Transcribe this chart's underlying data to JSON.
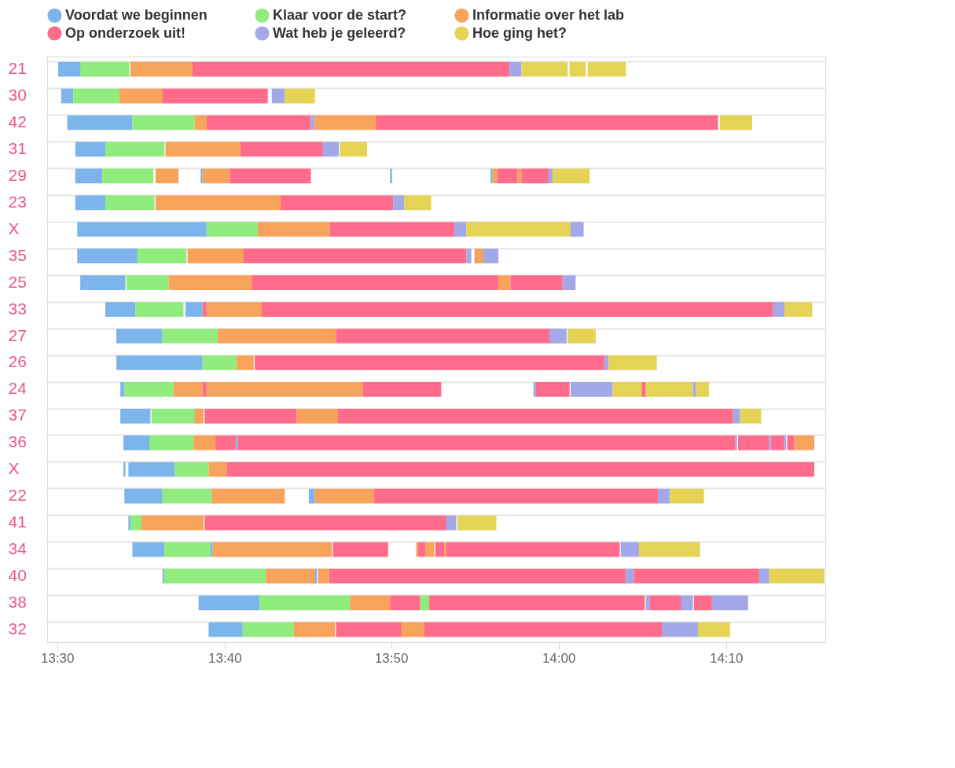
{
  "chart_data": {
    "type": "bar",
    "orientation": "horizontal",
    "legend": "top",
    "grid": "y",
    "categories": [
      "21",
      "30",
      "42",
      "31",
      "29",
      "23",
      "X",
      "35",
      "25",
      "33",
      "27",
      "26",
      "24",
      "37",
      "36",
      "X",
      "22",
      "41",
      "34",
      "40",
      "38",
      "32"
    ],
    "xlim": [
      13.49,
      14.266
    ],
    "xticks": [
      {
        "value": 13.5,
        "label": "13:30"
      },
      {
        "value": 13.667,
        "label": "13:40"
      },
      {
        "value": 13.833,
        "label": "13:50"
      },
      {
        "value": 14.0,
        "label": "14:00"
      },
      {
        "value": 14.167,
        "label": "14:10"
      }
    ],
    "series": [
      {
        "name": "Voordat we beginnen",
        "color": "#7cb5ec",
        "base": [
          13.501,
          13.504,
          13.51,
          13.518,
          13.518,
          13.518,
          13.52,
          13.52,
          13.523,
          13.548,
          13.559,
          13.559,
          13.563,
          13.563,
          13.566,
          13.566,
          13.567,
          13.571,
          13.575,
          13.605,
          13.641,
          13.651
        ],
        "values": [
          0.023,
          0.012,
          0.065,
          0.03,
          0.027,
          0.03,
          0.129,
          0.061,
          0.045,
          0.03,
          0.046,
          0.086,
          0.004,
          0.03,
          0.027,
          0.002,
          0.038,
          0.002,
          0.032,
          0.002,
          0.061,
          0.034
        ]
      },
      {
        "color": "#7cb5ec",
        "base": [
          null,
          null,
          null,
          null,
          13.643,
          null,
          null,
          null,
          null,
          13.628,
          null,
          null,
          13.975,
          null,
          13.678,
          13.571,
          13.751,
          null,
          13.653,
          13.757,
          null,
          null
        ],
        "values": [
          null,
          null,
          null,
          null,
          0.002,
          null,
          null,
          null,
          null,
          0.017,
          null,
          null,
          0.002,
          null,
          0.002,
          0.046,
          0.006,
          null,
          0.002,
          0.002,
          null,
          null
        ]
      },
      {
        "color": "#7cb5ec",
        "base": [
          null,
          null,
          null,
          null,
          13.832,
          null,
          null,
          null,
          null,
          null,
          null,
          null,
          null,
          null,
          null,
          null,
          null,
          null,
          null,
          null,
          null,
          null
        ],
        "values": [
          null,
          null,
          null,
          null,
          0.002,
          null,
          null,
          null,
          null,
          null,
          null,
          null,
          null,
          null,
          null,
          null,
          null,
          null,
          null,
          null,
          null,
          null
        ]
      },
      {
        "color": "#7cb5ec",
        "base": [
          null,
          null,
          null,
          null,
          13.932,
          null,
          null,
          null,
          null,
          null,
          null,
          null,
          null,
          null,
          null,
          null,
          null,
          null,
          null,
          null,
          null,
          null
        ],
        "values": [
          null,
          null,
          null,
          null,
          0.002,
          null,
          null,
          null,
          null,
          null,
          null,
          null,
          null,
          null,
          null,
          null,
          null,
          null,
          null,
          null,
          null,
          null
        ]
      },
      {
        "name": "Klaar voor de start?",
        "color": "#90ed7d",
        "base": [
          13.523,
          13.516,
          13.575,
          13.548,
          13.545,
          13.548,
          13.649,
          13.58,
          13.569,
          13.578,
          13.605,
          13.645,
          13.567,
          13.594,
          13.592,
          13.617,
          13.605,
          13.573,
          13.607,
          13.607,
          13.702,
          13.685
        ],
        "values": [
          0.049,
          0.046,
          0.062,
          0.059,
          0.051,
          0.049,
          0.051,
          0.049,
          0.042,
          0.048,
          0.055,
          0.034,
          0.049,
          0.044,
          0.044,
          0.034,
          0.049,
          0.012,
          0.046,
          0.101,
          0.09,
          0.051
        ]
      },
      {
        "color": "#90ed7d",
        "base": [
          null,
          null,
          null,
          null,
          null,
          null,
          null,
          null,
          null,
          null,
          null,
          null,
          null,
          null,
          null,
          null,
          null,
          null,
          null,
          null,
          13.862,
          null
        ],
        "values": [
          null,
          null,
          null,
          null,
          null,
          null,
          null,
          null,
          null,
          null,
          null,
          null,
          null,
          null,
          null,
          null,
          null,
          null,
          null,
          null,
          0.009,
          null
        ]
      },
      {
        "name": "Informatie over het lab",
        "color": "#f7a35c",
        "base": [
          13.573,
          13.562,
          13.637,
          13.608,
          13.598,
          13.598,
          13.7,
          13.63,
          13.611,
          13.649,
          13.66,
          13.679,
          13.616,
          13.637,
          13.636,
          13.651,
          13.654,
          13.584,
          13.655,
          13.708,
          13.792,
          13.736
        ],
        "values": [
          0.062,
          0.044,
          0.012,
          0.076,
          0.023,
          0.126,
          0.072,
          0.057,
          0.083,
          0.055,
          0.118,
          0.017,
          0.029,
          0.009,
          0.023,
          0.018,
          0.073,
          0.062,
          0.119,
          0.05,
          0.04,
          0.041
        ]
      },
      {
        "color": "#f7a35c",
        "base": [
          null,
          null,
          13.757,
          null,
          13.645,
          null,
          null,
          13.916,
          13.94,
          null,
          null,
          null,
          13.649,
          13.739,
          14.235,
          null,
          13.757,
          null,
          13.858,
          13.76,
          null,
          13.843
        ],
        "values": [
          null,
          null,
          0.062,
          null,
          0.027,
          null,
          null,
          0.009,
          0.012,
          null,
          null,
          null,
          0.156,
          0.041,
          0.02,
          null,
          0.059,
          null,
          0.002,
          0.011,
          null,
          0.023
        ]
      },
      {
        "color": "#f7a35c",
        "base": [
          null,
          null,
          null,
          null,
          13.934,
          null,
          null,
          null,
          null,
          null,
          null,
          null,
          null,
          null,
          null,
          null,
          null,
          null,
          13.867,
          null,
          null,
          null
        ],
        "values": [
          null,
          null,
          null,
          null,
          0.005,
          null,
          null,
          null,
          null,
          null,
          null,
          null,
          null,
          null,
          null,
          null,
          null,
          null,
          0.009,
          null,
          null,
          null
        ]
      },
      {
        "color": "#f7a35c",
        "base": [
          null,
          null,
          null,
          null,
          13.959,
          null,
          null,
          null,
          null,
          null,
          null,
          null,
          null,
          null,
          null,
          null,
          null,
          null,
          13.886,
          null,
          null,
          null
        ],
        "values": [
          null,
          null,
          null,
          null,
          0.004,
          null,
          null,
          null,
          null,
          null,
          null,
          null,
          null,
          null,
          null,
          null,
          null,
          null,
          0.002,
          null,
          null,
          null
        ]
      },
      {
        "name": "Op onderzoek uit!",
        "color": "#ff6b8a",
        "base": [
          13.635,
          13.605,
          13.649,
          13.683,
          13.672,
          13.723,
          13.772,
          13.686,
          13.694,
          13.645,
          13.778,
          13.697,
          13.645,
          13.647,
          13.658,
          13.669,
          13.816,
          13.647,
          13.775,
          13.771,
          13.832,
          13.778
        ],
        "values": [
          0.316,
          0.105,
          0.104,
          0.082,
          0.081,
          0.112,
          0.124,
          0.222,
          0.246,
          0.004,
          0.214,
          0.349,
          0.004,
          0.092,
          0.02,
          0.586,
          0.283,
          0.242,
          0.055,
          0.296,
          0.03,
          0.066
        ]
      },
      {
        "color": "#ff6b8a",
        "base": [
          null,
          null,
          13.818,
          null,
          13.939,
          null,
          null,
          null,
          13.952,
          13.704,
          null,
          null,
          13.805,
          13.78,
          13.68,
          null,
          null,
          null,
          13.86,
          14.075,
          13.871,
          13.866
        ],
        "values": [
          null,
          null,
          0.341,
          null,
          0.02,
          null,
          null,
          null,
          0.052,
          0.51,
          null,
          null,
          0.078,
          0.394,
          0.496,
          null,
          null,
          null,
          0.007,
          0.125,
          0.215,
          0.237
        ]
      },
      {
        "color": "#ff6b8a",
        "base": [
          null,
          null,
          null,
          null,
          13.963,
          null,
          null,
          null,
          null,
          null,
          null,
          null,
          13.977,
          null,
          14.179,
          null,
          null,
          null,
          13.877,
          null,
          14.091,
          null
        ],
        "values": [
          null,
          null,
          null,
          null,
          0.027,
          null,
          null,
          null,
          null,
          null,
          null,
          null,
          0.034,
          null,
          0.031,
          null,
          null,
          null,
          0.009,
          null,
          0.032,
          null
        ]
      },
      {
        "color": "#ff6b8a",
        "base": [
          null,
          null,
          null,
          null,
          null,
          null,
          null,
          null,
          null,
          null,
          null,
          null,
          14.083,
          null,
          14.212,
          null,
          null,
          null,
          13.888,
          null,
          14.135,
          null
        ],
        "values": [
          null,
          null,
          null,
          null,
          null,
          null,
          null,
          null,
          null,
          null,
          null,
          null,
          0.004,
          null,
          0.013,
          null,
          null,
          null,
          0.173,
          null,
          0.018,
          null
        ]
      },
      {
        "color": "#ff6b8a",
        "base": [
          null,
          null,
          null,
          null,
          null,
          null,
          null,
          null,
          null,
          null,
          null,
          null,
          null,
          null,
          14.228,
          null,
          null,
          null,
          null,
          null,
          null,
          null
        ],
        "values": [
          null,
          null,
          null,
          null,
          null,
          null,
          null,
          null,
          null,
          null,
          null,
          null,
          null,
          null,
          0.007,
          null,
          null,
          null,
          null,
          null,
          null,
          null
        ]
      },
      {
        "name": "Wat heb je geleerd?",
        "color": "#a3a9e8",
        "base": [
          13.951,
          13.714,
          13.753,
          13.765,
          13.99,
          13.835,
          13.896,
          13.908,
          14.004,
          14.214,
          13.991,
          14.046,
          14.012,
          14.174,
          14.176,
          null,
          14.099,
          13.888,
          14.062,
          14.067,
          14.087,
          14.103
        ],
        "values": [
          0.012,
          0.013,
          0.004,
          0.016,
          0.004,
          0.011,
          0.012,
          0.005,
          0.013,
          0.012,
          0.017,
          0.004,
          0.042,
          0.007,
          0.002,
          null,
          0.012,
          0.01,
          0.019,
          0.008,
          0.004,
          0.036
        ]
      },
      {
        "color": "#a3a9e8",
        "base": [
          null,
          null,
          null,
          null,
          null,
          null,
          14.012,
          13.925,
          null,
          null,
          null,
          null,
          14.134,
          null,
          14.21,
          null,
          null,
          null,
          null,
          14.2,
          14.122,
          null
        ],
        "values": [
          null,
          null,
          null,
          null,
          null,
          null,
          0.013,
          0.015,
          null,
          null,
          null,
          null,
          0.003,
          null,
          0.002,
          null,
          null,
          null,
          null,
          0.01,
          0.012,
          null
        ]
      },
      {
        "color": "#a3a9e8",
        "base": [
          null,
          null,
          null,
          null,
          null,
          null,
          null,
          null,
          null,
          null,
          null,
          null,
          null,
          null,
          14.225,
          null,
          null,
          null,
          null,
          null,
          14.153,
          null
        ],
        "values": [
          null,
          null,
          null,
          null,
          null,
          null,
          null,
          null,
          null,
          null,
          null,
          null,
          null,
          null,
          0.002,
          null,
          null,
          null,
          null,
          null,
          0.036,
          null
        ]
      },
      {
        "name": "Hoe ging het?",
        "color": "#e4d354",
        "base": [
          13.963,
          13.727,
          14.161,
          13.782,
          13.994,
          13.846,
          13.908,
          null,
          null,
          14.225,
          14.009,
          14.05,
          14.054,
          14.181,
          null,
          null,
          14.111,
          13.899,
          14.08,
          14.21,
          null,
          14.139
        ],
        "values": [
          0.046,
          0.03,
          0.032,
          0.027,
          0.037,
          0.027,
          0.104,
          null,
          null,
          0.028,
          0.028,
          0.048,
          0.03,
          0.021,
          null,
          null,
          0.034,
          0.039,
          0.061,
          0.055,
          null,
          0.032
        ]
      },
      {
        "color": "#e4d354",
        "base": [
          14.011,
          null,
          null,
          null,
          null,
          null,
          null,
          null,
          null,
          null,
          null,
          null,
          14.087,
          null,
          null,
          null,
          null,
          null,
          null,
          null,
          null,
          null
        ],
        "values": [
          0.016,
          null,
          null,
          null,
          null,
          null,
          null,
          null,
          null,
          null,
          null,
          null,
          0.047,
          null,
          null,
          null,
          null,
          null,
          null,
          null,
          null,
          null
        ]
      },
      {
        "color": "#e4d354",
        "base": [
          14.029,
          null,
          null,
          null,
          null,
          null,
          null,
          null,
          null,
          null,
          null,
          null,
          14.137,
          null,
          null,
          null,
          null,
          null,
          null,
          null,
          null,
          null
        ],
        "values": [
          0.038,
          null,
          null,
          null,
          null,
          null,
          null,
          null,
          null,
          null,
          null,
          null,
          0.013,
          null,
          null,
          null,
          null,
          null,
          null,
          null,
          null,
          null
        ]
      }
    ]
  }
}
